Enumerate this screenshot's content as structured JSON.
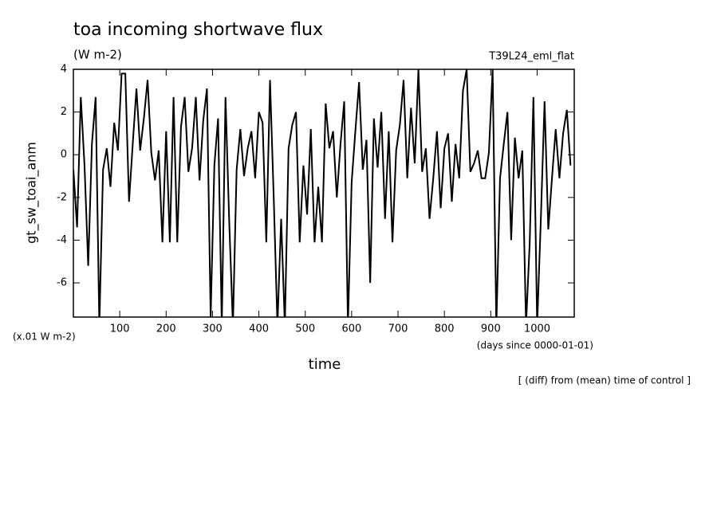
{
  "chart_data": {
    "type": "line",
    "title": "toa incoming shortwave flux",
    "subtitle": "(W m-2)",
    "run_label": "T39L24_eml_flat",
    "ylabel": "gt_sw_toai_anm",
    "yunit": "(x.01 W m-2)",
    "xunit": "(days since 0000-01-01)",
    "xlabel": "time",
    "note": "[ (diff) from (mean) time of control ]",
    "xlim": [
      0,
      1080
    ],
    "ylim": [
      -7.6,
      4
    ],
    "xticks": [
      100,
      200,
      300,
      400,
      500,
      600,
      700,
      800,
      900,
      1000
    ],
    "yticks": [
      -6,
      -4,
      -2,
      0,
      2,
      4
    ],
    "x": [
      0,
      8,
      16,
      24,
      32,
      40,
      48,
      56,
      64,
      72,
      80,
      88,
      96,
      104,
      112,
      120,
      128,
      136,
      144,
      152,
      160,
      168,
      176,
      184,
      192,
      200,
      208,
      216,
      224,
      232,
      240,
      248,
      256,
      264,
      272,
      280,
      288,
      296,
      304,
      312,
      320,
      328,
      336,
      344,
      352,
      360,
      368,
      376,
      384,
      392,
      400,
      408,
      416,
      424,
      432,
      440,
      448,
      456,
      464,
      472,
      480,
      488,
      496,
      504,
      512,
      520,
      528,
      536,
      544,
      552,
      560,
      568,
      576,
      584,
      592,
      600,
      608,
      616,
      624,
      632,
      640,
      648,
      656,
      664,
      672,
      680,
      688,
      696,
      704,
      712,
      720,
      728,
      736,
      744,
      752,
      760,
      768,
      776,
      784,
      792,
      800,
      808,
      816,
      824,
      832,
      840,
      848,
      856,
      864,
      872,
      880,
      888,
      896,
      904,
      912,
      920,
      928,
      936,
      944,
      952,
      960,
      968,
      976,
      984,
      992,
      1000,
      1008,
      1016,
      1024,
      1032,
      1040,
      1048,
      1056,
      1064,
      1072
    ],
    "series": [
      {
        "color": "#000000",
        "values": [
          -0.7,
          -3.4,
          2.7,
          -0.5,
          -5.2,
          0.5,
          2.7,
          -8,
          -0.7,
          0.3,
          -1.5,
          1.5,
          0.2,
          3.8,
          3.8,
          -2.2,
          0.5,
          3.1,
          0.2,
          1.7,
          3.5,
          0.1,
          -1.2,
          0.2,
          -4.1,
          1.1,
          -4.1,
          2.7,
          -4.1,
          1.3,
          2.7,
          -0.8,
          0.3,
          2.7,
          -1.2,
          1.6,
          3.1,
          -7.6,
          -0.5,
          1.7,
          -8,
          2.7,
          -3.1,
          -8,
          -0.7,
          1.2,
          -1.0,
          0.3,
          1.1,
          -1.1,
          2.0,
          1.5,
          -4.1,
          3.5,
          -2.0,
          -8,
          -3.0,
          -8,
          0.3,
          1.4,
          2.0,
          -4.1,
          -0.5,
          -2.8,
          1.2,
          -4.1,
          -1.5,
          -4.1,
          2.4,
          0.3,
          1.1,
          -2.0,
          0.5,
          2.5,
          -8,
          -1.3,
          1.1,
          3.4,
          -0.7,
          0.7,
          -6.0,
          1.7,
          -0.6,
          2.0,
          -3.0,
          1.1,
          -4.1,
          0.2,
          1.4,
          3.5,
          -1.1,
          2.2,
          -0.4,
          4.0,
          -0.8,
          0.3,
          -3.0,
          -1.1,
          1.1,
          -2.5,
          0.3,
          1.0,
          -2.2,
          0.5,
          -1.1,
          3.0,
          4.0,
          -0.8,
          -0.4,
          0.2,
          -1.1,
          -1.1,
          0.1,
          4.0,
          -8,
          -1.1,
          0.5,
          2.0,
          -4.0,
          0.8,
          -1.1,
          0.2,
          -8,
          -4.1,
          2.7,
          -8,
          -3.0,
          2.5,
          -3.5,
          -1.1,
          1.2,
          -1.1,
          1.0,
          2.1,
          -0.5
        ]
      }
    ]
  }
}
